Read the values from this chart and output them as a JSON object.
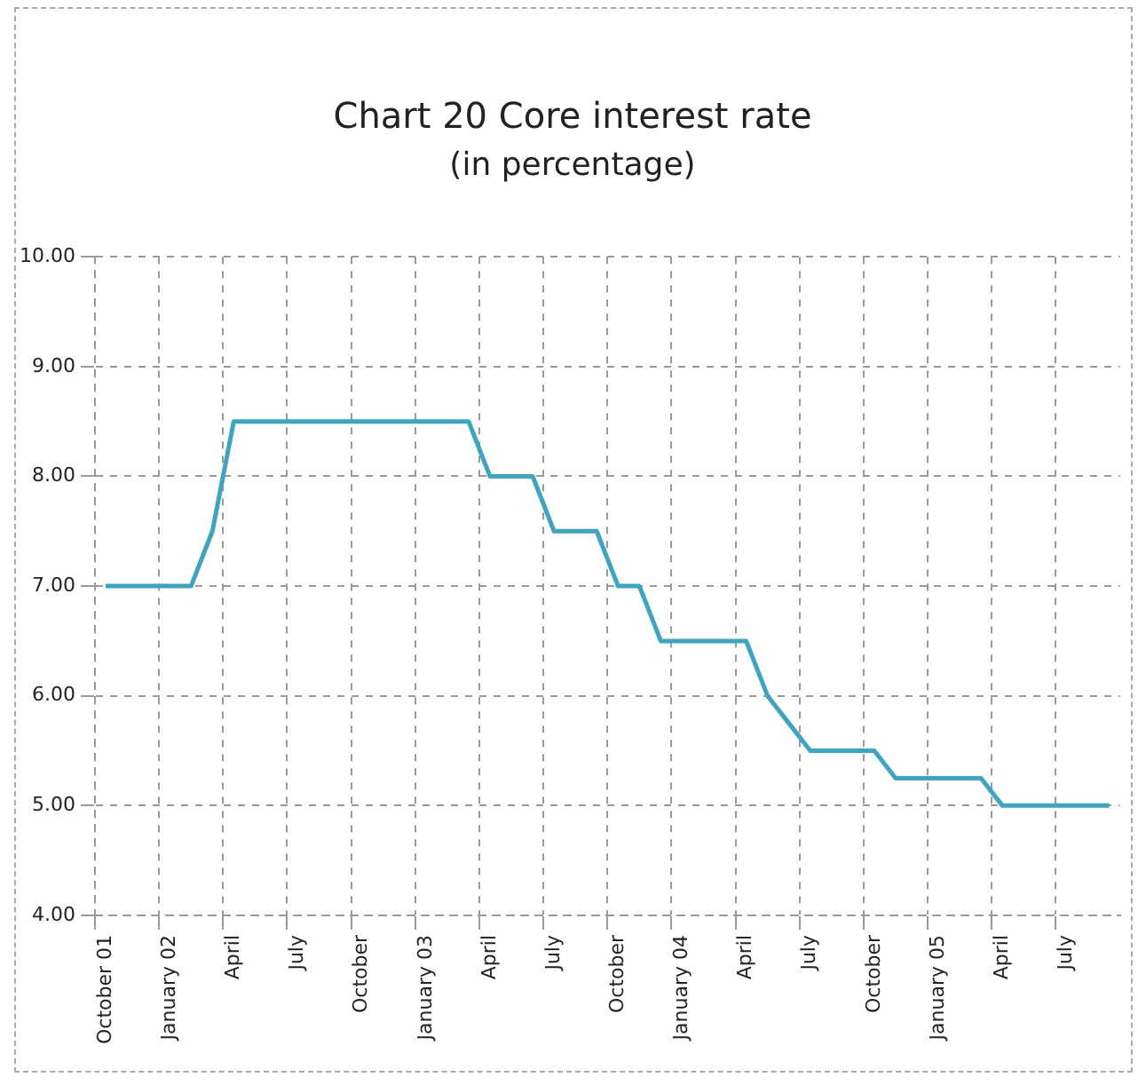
{
  "chart_data": {
    "type": "line",
    "title": "Chart 20 Core interest rate",
    "subtitle": "(in percentage)",
    "categories": [
      "October 01",
      null,
      null,
      "January 02",
      null,
      null,
      "April",
      null,
      null,
      "July",
      null,
      null,
      "October",
      null,
      null,
      "January 03",
      null,
      null,
      "April",
      null,
      null,
      "July",
      null,
      null,
      "October",
      null,
      null,
      "January 04",
      null,
      null,
      "April",
      null,
      null,
      "July",
      null,
      null,
      "October",
      null,
      null,
      "January 05",
      null,
      null,
      "April",
      null,
      null,
      "July",
      null,
      null
    ],
    "series": [
      {
        "color": "#3aa6c4",
        "values": [
          7,
          7,
          7,
          7,
          7,
          7.5,
          8.5,
          8.5,
          8.5,
          8.5,
          8.5,
          8.5,
          8.5,
          8.5,
          8.5,
          8.5,
          8.5,
          8.5,
          8,
          8,
          8,
          7.5,
          7.5,
          7.5,
          7,
          7,
          6.5,
          6.5,
          6.5,
          6.5,
          6.5,
          6,
          5.75,
          5.5,
          5.5,
          5.5,
          5.5,
          5.25,
          5.25,
          5.25,
          5.25,
          5.25,
          5,
          5,
          5,
          5,
          5,
          5
        ]
      }
    ],
    "ylim": [
      4,
      10
    ],
    "yticks": [
      {
        "value": 4,
        "label": "4.00"
      },
      {
        "value": 5,
        "label": "5.00"
      },
      {
        "value": 6,
        "label": "6.00"
      },
      {
        "value": 7,
        "label": "7.00"
      },
      {
        "value": 8,
        "label": "8.00"
      },
      {
        "value": 9,
        "label": "9.00"
      },
      {
        "value": 10,
        "label": "10.00"
      }
    ],
    "grid": true,
    "legend": false,
    "marker": "none",
    "line_style": "solid"
  }
}
